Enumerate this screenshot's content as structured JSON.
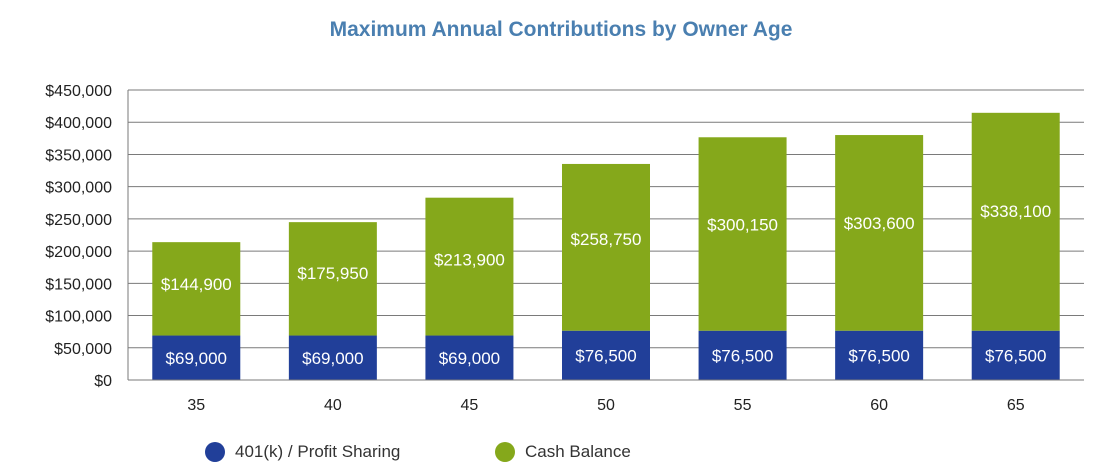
{
  "chart_data": {
    "type": "bar",
    "stacked": true,
    "title": "Maximum Annual Contributions by Owner Age",
    "categories": [
      "35",
      "40",
      "45",
      "50",
      "55",
      "60",
      "65"
    ],
    "series": [
      {
        "name": "401(k) / Profit Sharing",
        "values": [
          69000,
          69000,
          69000,
          76500,
          76500,
          76500,
          76500
        ],
        "labels": [
          "$69,000",
          "$69,000",
          "$69,000",
          "$76,500",
          "$76,500",
          "$76,500",
          "$76,500"
        ],
        "color": "#213f99"
      },
      {
        "name": "Cash Balance",
        "values": [
          144900,
          175950,
          213900,
          258750,
          300150,
          303600,
          338100
        ],
        "labels": [
          "$144,900",
          "$175,950",
          "$213,900",
          "$258,750",
          "$300,150",
          "$303,600",
          "$338,100"
        ],
        "color": "#85a81b"
      }
    ],
    "ylim": [
      0,
      450000
    ],
    "yticks": [
      0,
      50000,
      100000,
      150000,
      200000,
      250000,
      300000,
      350000,
      400000,
      450000
    ],
    "ytick_labels": [
      "$0",
      "$50,000",
      "$100,000",
      "$150,000",
      "$200,000",
      "$250,000",
      "$300,000",
      "$350,000",
      "$400,000",
      "$450,000"
    ],
    "grid": true,
    "legend": "bottom"
  }
}
